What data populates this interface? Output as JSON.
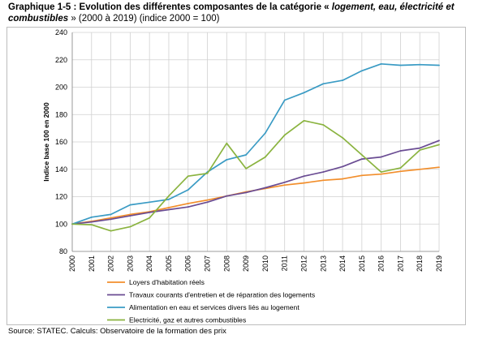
{
  "title": {
    "prefix": "Graphique 1-5 : Evolution des différentes composantes de la catégorie « ",
    "italic": "logement, eau, électricité et combustibles",
    "suffix": " » (2000 à 2019) (indice 2000 = 100)"
  },
  "source": "Source: STATEC. Calculs: Observatoire de la formation des prix",
  "chart_data": {
    "type": "line",
    "title": "Evolution des différentes composantes de la catégorie « logement, eau, électricité et combustibles » (2000 à 2019) (indice 2000 = 100)",
    "xlabel": "",
    "ylabel": "Indice base 100 en 2000",
    "ylim": [
      80,
      240
    ],
    "yticks": [
      "80",
      "100",
      "120",
      "140",
      "160",
      "180",
      "200",
      "220",
      "240"
    ],
    "categories": [
      "2000",
      "2001",
      "2002",
      "2003",
      "2004",
      "2005",
      "2006",
      "2007",
      "2008",
      "2009",
      "2010",
      "2011",
      "2012",
      "2013",
      "2014",
      "2015",
      "2016",
      "2017",
      "2018",
      "2019"
    ],
    "grid": true,
    "legend_position": "bottom",
    "series": [
      {
        "name": "Loyers d'habitation réels",
        "color": "#f28e2b",
        "values": [
          100,
          102,
          104.5,
          107,
          109,
          112,
          115,
          117.5,
          120.5,
          123.5,
          126,
          128.5,
          130,
          132,
          133,
          135.5,
          136.5,
          138.5,
          140,
          141.5
        ]
      },
      {
        "name": "Travaux courants d'entretien et de réparation des logements",
        "color": "#6a4c93",
        "values": [
          100,
          101.5,
          103.5,
          106,
          108.5,
          110.5,
          112.5,
          116,
          120.5,
          123,
          126.5,
          130.5,
          135,
          138,
          142,
          147.5,
          149,
          153.5,
          155.5,
          161
        ]
      },
      {
        "name": "Alimentation en eau et services divers liés au logement",
        "color": "#3a9bc4",
        "values": [
          100,
          105,
          107,
          114,
          116,
          118,
          125,
          138,
          147,
          150.5,
          166.5,
          190.5,
          196,
          202.5,
          205,
          212,
          217,
          216,
          216.5,
          216
        ]
      },
      {
        "name": "Electricité, gaz et autres combustibles",
        "color": "#8ab33f",
        "values": [
          100,
          99.5,
          95,
          98,
          104.5,
          120.5,
          135,
          137,
          159,
          140.5,
          149,
          165,
          175.5,
          172.5,
          163,
          150.5,
          138,
          141,
          154,
          158
        ]
      }
    ]
  }
}
